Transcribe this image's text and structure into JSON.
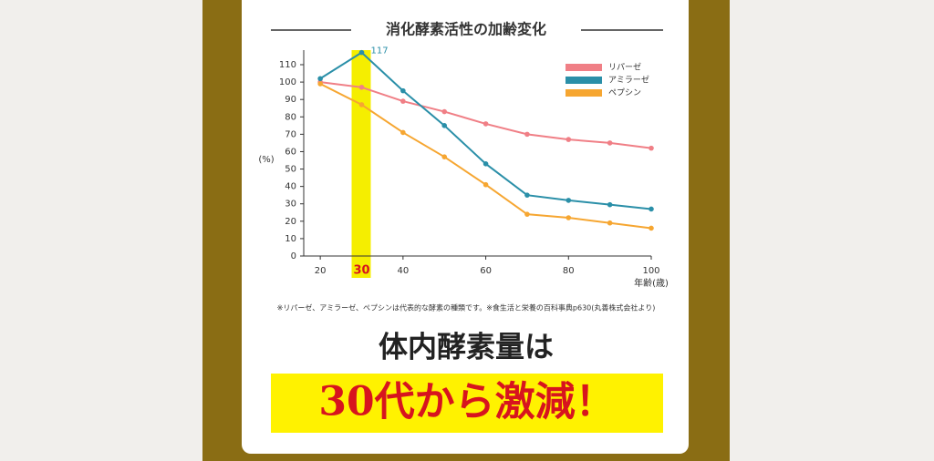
{
  "chart_data": {
    "type": "line",
    "title": "消化酵素活性の加齢変化",
    "x": [
      20,
      30,
      40,
      50,
      60,
      70,
      80,
      90,
      100
    ],
    "series": [
      {
        "name": "リパーゼ",
        "color": "#f07f86",
        "values": [
          100,
          97,
          89,
          83,
          76,
          70,
          67,
          65,
          62
        ]
      },
      {
        "name": "アミラーゼ",
        "color": "#2a8fa8",
        "values": [
          102,
          117,
          95,
          75,
          53,
          35,
          32,
          29.5,
          27
        ]
      },
      {
        "name": "ペプシン",
        "color": "#f6a631",
        "values": [
          99,
          87,
          71,
          57,
          41,
          24,
          22,
          19,
          16
        ]
      }
    ],
    "xlim": [
      16,
      100
    ],
    "ylim": [
      0,
      110
    ],
    "xticks": [
      20,
      40,
      60,
      80,
      100
    ],
    "yticks": [
      0,
      10,
      20,
      30,
      40,
      50,
      60,
      70,
      80,
      90,
      100,
      110
    ],
    "highlight_x": 30,
    "highlight_color": "#f5ee00",
    "ylabel": "(%)",
    "xlabel": "年齢(歳)",
    "legend": "upper right"
  },
  "note": "※リパーゼ、アミラーゼ、ペプシンは代表的な酵素の種類です。※食生活と栄養の百科事典p630(丸善株式会社より)",
  "headline": "体内酵素量は",
  "banner": "30代から激減！"
}
